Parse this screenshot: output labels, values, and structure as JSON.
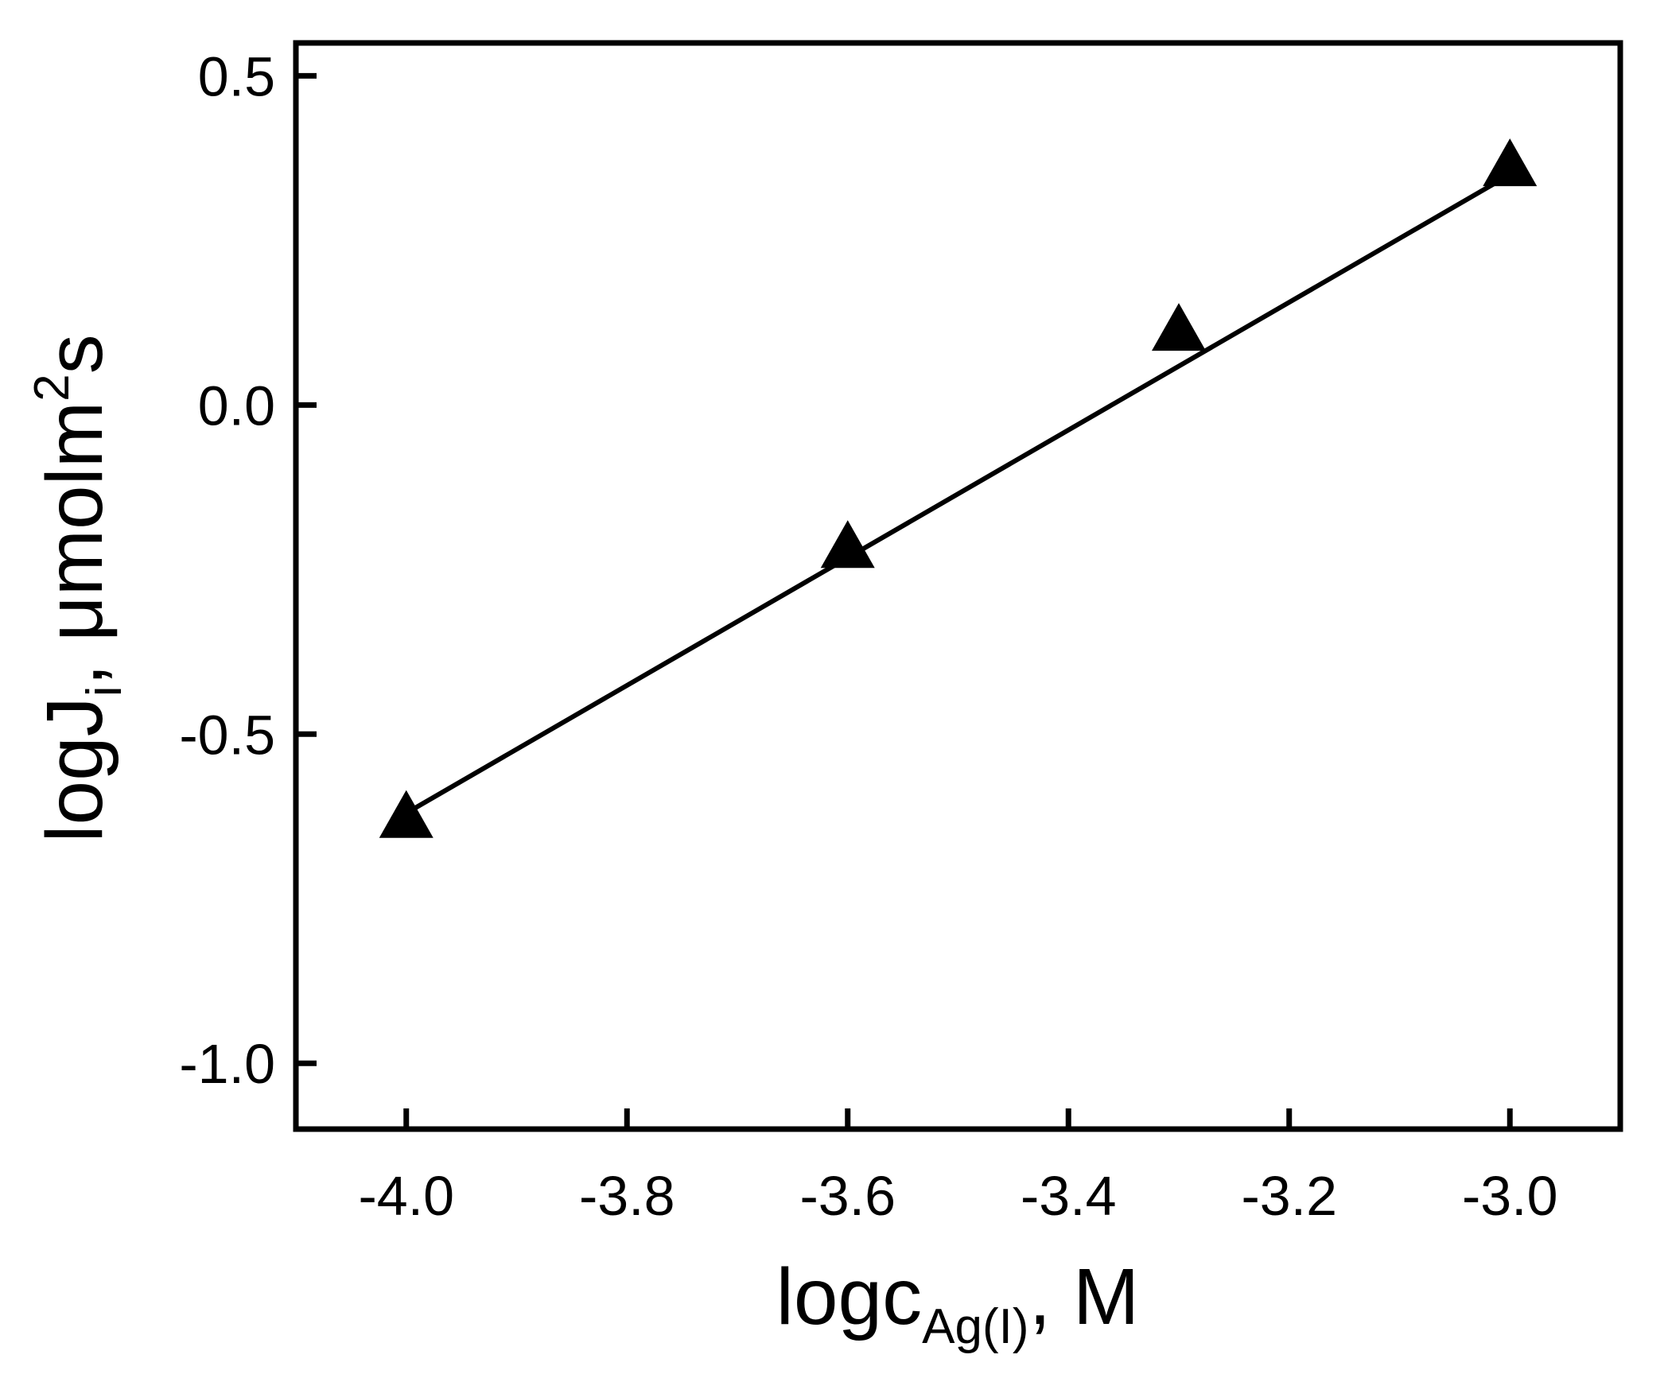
{
  "chart_data": {
    "type": "line",
    "markers": "filled-triangle",
    "line_color": "#000000",
    "marker_color": "#000000",
    "grid": false,
    "legend": "none",
    "x": [
      -4.0,
      -3.6,
      -3.3,
      -3.0
    ],
    "y": [
      -0.63,
      -0.22,
      0.11,
      0.36
    ],
    "fit_line": {
      "x": [
        -4.0,
        -3.0
      ],
      "y": [
        -0.62,
        0.35
      ]
    },
    "xlim": [
      -4.1,
      -2.9
    ],
    "ylim": [
      -1.1,
      0.55
    ],
    "x_ticks": [
      -4.0,
      -3.8,
      -3.6,
      -3.4,
      -3.2,
      -3.0
    ],
    "x_tick_labels": [
      "-4.0",
      "-3.8",
      "-3.6",
      "-3.4",
      "-3.2",
      "-3.0"
    ],
    "y_ticks": [
      -1.0,
      -0.5,
      0.0,
      0.5
    ],
    "y_tick_labels": [
      "-1.0",
      "-0.5",
      "0.0",
      "0.5"
    ],
    "xlabel": {
      "main": "logc",
      "sub": "Ag(I)",
      "rest": ", M"
    },
    "ylabel": {
      "main": "logJ",
      "sub": "i",
      "mid": ", μmolm",
      "sup": "2",
      "rest": "s"
    }
  }
}
